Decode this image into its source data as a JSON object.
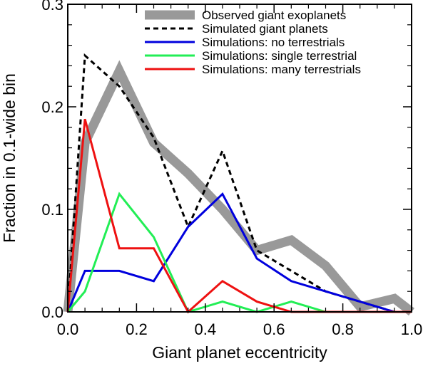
{
  "chart_data": {
    "type": "line",
    "title": "",
    "xlabel": "Giant planet eccentricity",
    "ylabel": "Fraction in 0.1-wide bin",
    "xlim": [
      0,
      1
    ],
    "ylim": [
      0,
      0.3
    ],
    "x_ticks": [
      "0.0",
      "0.2",
      "0.4",
      "0.6",
      "0.8",
      "1.0"
    ],
    "y_ticks": [
      "0.0",
      "0.1",
      "0.2",
      "0.3"
    ],
    "grid": false,
    "legend_position": "top-right",
    "x": [
      0.0,
      0.05,
      0.15,
      0.25,
      0.35,
      0.45,
      0.55,
      0.65,
      0.75,
      0.85,
      0.95,
      1.0
    ],
    "series": [
      {
        "name": "Observed giant exoplanets",
        "color": "#999999",
        "style": "thick",
        "values": [
          0.0,
          0.165,
          0.235,
          0.165,
          0.135,
          0.1,
          0.06,
          0.07,
          0.045,
          0.005,
          0.013,
          0.0
        ]
      },
      {
        "name": "Simulated giant planets",
        "color": "#000000",
        "style": "dashed",
        "values": [
          0.0,
          0.25,
          0.22,
          0.17,
          0.083,
          0.157,
          0.06,
          0.04,
          0.02,
          0.01,
          0.0,
          0.0
        ]
      },
      {
        "name": "Simulations: no terrestrials",
        "color": "#0000dd",
        "style": "solid",
        "values": [
          0.0,
          0.04,
          0.04,
          0.03,
          0.083,
          0.115,
          0.052,
          0.03,
          0.02,
          0.01,
          0.0,
          0.0
        ]
      },
      {
        "name": "Simulations: single terrestrial",
        "color": "#22ee55",
        "style": "solid",
        "values": [
          0.0,
          0.02,
          0.115,
          0.073,
          0.0,
          0.01,
          0.0,
          0.01,
          0.0,
          0.0,
          0.0,
          0.0
        ]
      },
      {
        "name": "Simulations: many terrestrials",
        "color": "#ee1111",
        "style": "solid",
        "values": [
          0.0,
          0.188,
          0.062,
          0.062,
          0.0,
          0.03,
          0.01,
          0.0,
          0.0,
          0.0,
          0.0,
          0.0
        ]
      }
    ]
  }
}
